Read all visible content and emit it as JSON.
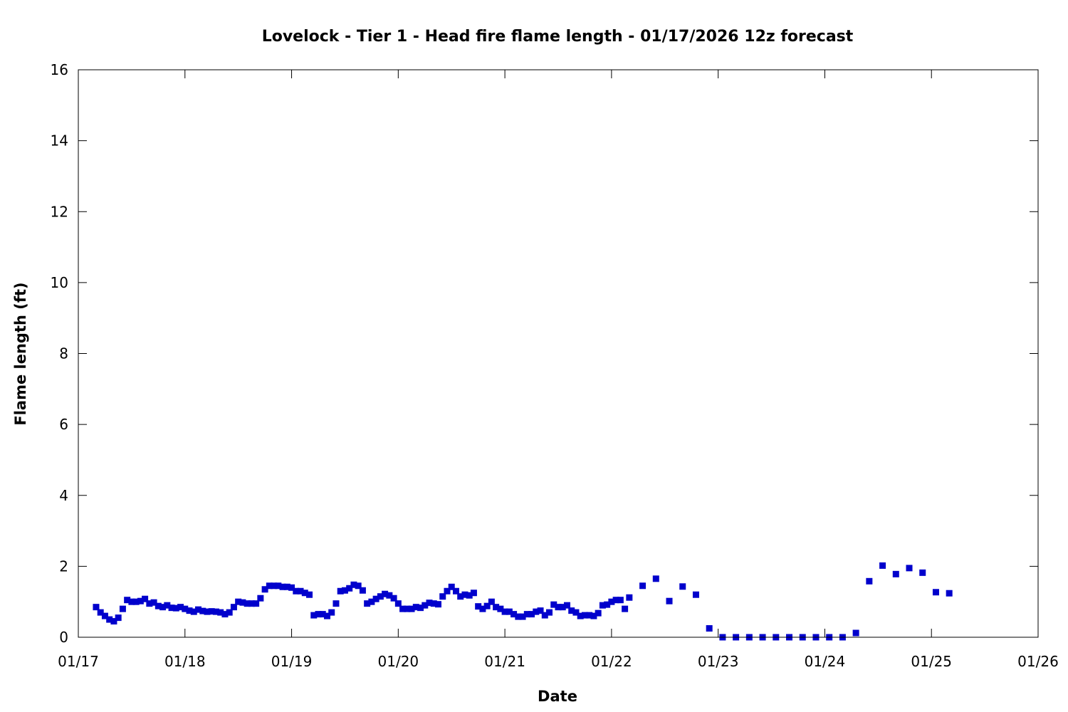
{
  "chart_data": {
    "type": "scatter",
    "title": "Lovelock - Tier 1 - Head fire flame length - 01/17/2026 12z forecast",
    "xlabel": "Date",
    "ylabel": "Flame length (ft)",
    "xlim": [
      "2026-01-17T00:00",
      "2026-01-26T00:00"
    ],
    "ylim": [
      0,
      16
    ],
    "x_tick_labels": [
      "01/17",
      "01/18",
      "01/19",
      "01/20",
      "01/21",
      "01/22",
      "01/23",
      "01/24",
      "01/25",
      "01/26"
    ],
    "y_tick_labels": [
      "0",
      "2",
      "4",
      "6",
      "8",
      "10",
      "12",
      "14",
      "16"
    ],
    "y_ticks": [
      0,
      2,
      4,
      6,
      8,
      10,
      12,
      14,
      16
    ],
    "grid": false,
    "marker_color": "#0000cc",
    "series": [
      {
        "x": [
          "2026-01-17T04:00",
          "2026-01-17T05:00",
          "2026-01-17T06:00",
          "2026-01-17T07:00",
          "2026-01-17T08:00",
          "2026-01-17T09:00",
          "2026-01-17T10:00",
          "2026-01-17T11:00",
          "2026-01-17T12:00",
          "2026-01-17T13:00",
          "2026-01-17T14:00",
          "2026-01-17T15:00",
          "2026-01-17T16:00",
          "2026-01-17T17:00",
          "2026-01-17T18:00",
          "2026-01-17T19:00",
          "2026-01-17T20:00",
          "2026-01-17T21:00",
          "2026-01-17T22:00",
          "2026-01-17T23:00",
          "2026-01-18T00:00",
          "2026-01-18T01:00",
          "2026-01-18T02:00",
          "2026-01-18T03:00",
          "2026-01-18T04:00",
          "2026-01-18T05:00",
          "2026-01-18T06:00",
          "2026-01-18T07:00",
          "2026-01-18T08:00",
          "2026-01-18T09:00",
          "2026-01-18T10:00",
          "2026-01-18T11:00",
          "2026-01-18T12:00",
          "2026-01-18T13:00",
          "2026-01-18T14:00",
          "2026-01-18T15:00",
          "2026-01-18T16:00",
          "2026-01-18T17:00",
          "2026-01-18T18:00",
          "2026-01-18T19:00",
          "2026-01-18T20:00",
          "2026-01-18T21:00",
          "2026-01-18T22:00",
          "2026-01-18T23:00",
          "2026-01-19T00:00",
          "2026-01-19T01:00",
          "2026-01-19T02:00",
          "2026-01-19T03:00",
          "2026-01-19T04:00",
          "2026-01-19T05:00",
          "2026-01-19T06:00",
          "2026-01-19T07:00",
          "2026-01-19T08:00",
          "2026-01-19T09:00",
          "2026-01-19T10:00",
          "2026-01-19T11:00",
          "2026-01-19T12:00",
          "2026-01-19T13:00",
          "2026-01-19T14:00",
          "2026-01-19T15:00",
          "2026-01-19T16:00",
          "2026-01-19T17:00",
          "2026-01-19T18:00",
          "2026-01-19T19:00",
          "2026-01-19T20:00",
          "2026-01-19T21:00",
          "2026-01-19T22:00",
          "2026-01-19T23:00",
          "2026-01-20T00:00",
          "2026-01-20T01:00",
          "2026-01-20T02:00",
          "2026-01-20T03:00",
          "2026-01-20T04:00",
          "2026-01-20T05:00",
          "2026-01-20T06:00",
          "2026-01-20T07:00",
          "2026-01-20T08:00",
          "2026-01-20T09:00",
          "2026-01-20T10:00",
          "2026-01-20T11:00",
          "2026-01-20T12:00",
          "2026-01-20T13:00",
          "2026-01-20T14:00",
          "2026-01-20T15:00",
          "2026-01-20T16:00",
          "2026-01-20T17:00",
          "2026-01-20T18:00",
          "2026-01-20T19:00",
          "2026-01-20T20:00",
          "2026-01-20T21:00",
          "2026-01-20T22:00",
          "2026-01-20T23:00",
          "2026-01-21T00:00",
          "2026-01-21T01:00",
          "2026-01-21T02:00",
          "2026-01-21T03:00",
          "2026-01-21T04:00",
          "2026-01-21T05:00",
          "2026-01-21T06:00",
          "2026-01-21T07:00",
          "2026-01-21T08:00",
          "2026-01-21T09:00",
          "2026-01-21T10:00",
          "2026-01-21T11:00",
          "2026-01-21T12:00",
          "2026-01-21T13:00",
          "2026-01-21T14:00",
          "2026-01-21T15:00",
          "2026-01-21T16:00",
          "2026-01-21T17:00",
          "2026-01-21T18:00",
          "2026-01-21T19:00",
          "2026-01-21T20:00",
          "2026-01-21T21:00",
          "2026-01-21T22:00",
          "2026-01-21T23:00",
          "2026-01-22T00:00",
          "2026-01-22T01:00",
          "2026-01-22T02:00",
          "2026-01-22T03:00",
          "2026-01-22T04:00",
          "2026-01-22T07:00",
          "2026-01-22T10:00",
          "2026-01-22T13:00",
          "2026-01-22T16:00",
          "2026-01-22T19:00",
          "2026-01-22T22:00",
          "2026-01-23T01:00",
          "2026-01-23T04:00",
          "2026-01-23T07:00",
          "2026-01-23T10:00",
          "2026-01-23T13:00",
          "2026-01-23T16:00",
          "2026-01-23T19:00",
          "2026-01-23T22:00",
          "2026-01-24T01:00",
          "2026-01-24T04:00",
          "2026-01-24T07:00",
          "2026-01-24T10:00",
          "2026-01-24T13:00",
          "2026-01-24T16:00",
          "2026-01-24T19:00",
          "2026-01-24T22:00",
          "2026-01-25T01:00",
          "2026-01-25T04:00"
        ],
        "y": [
          0.85,
          0.7,
          0.6,
          0.5,
          0.45,
          0.55,
          0.8,
          1.05,
          1.0,
          1.0,
          1.02,
          1.08,
          0.95,
          0.98,
          0.88,
          0.85,
          0.9,
          0.83,
          0.82,
          0.85,
          0.8,
          0.75,
          0.72,
          0.78,
          0.74,
          0.72,
          0.73,
          0.72,
          0.7,
          0.65,
          0.7,
          0.85,
          1.0,
          0.98,
          0.95,
          0.95,
          0.95,
          1.1,
          1.35,
          1.45,
          1.45,
          1.45,
          1.42,
          1.42,
          1.4,
          1.3,
          1.3,
          1.25,
          1.2,
          0.62,
          0.65,
          0.65,
          0.6,
          0.7,
          0.95,
          1.3,
          1.32,
          1.38,
          1.48,
          1.45,
          1.32,
          0.95,
          1.0,
          1.08,
          1.15,
          1.22,
          1.18,
          1.1,
          0.95,
          0.8,
          0.8,
          0.8,
          0.85,
          0.83,
          0.9,
          0.97,
          0.95,
          0.93,
          1.15,
          1.3,
          1.42,
          1.3,
          1.15,
          1.2,
          1.18,
          1.25,
          0.87,
          0.8,
          0.88,
          1.0,
          0.85,
          0.8,
          0.72,
          0.72,
          0.65,
          0.58,
          0.58,
          0.65,
          0.65,
          0.72,
          0.75,
          0.62,
          0.7,
          0.92,
          0.85,
          0.85,
          0.9,
          0.75,
          0.7,
          0.6,
          0.62,
          0.62,
          0.6,
          0.68,
          0.9,
          0.92,
          1.0,
          1.05,
          1.05,
          0.8,
          1.12,
          1.45,
          1.65,
          1.02,
          1.43,
          1.2,
          0.25,
          0.0,
          0.0,
          0.0,
          0.0,
          0.0,
          0.0,
          0.0,
          0.0,
          0.0,
          0.0,
          0.12,
          1.58,
          2.02,
          1.78,
          1.95,
          1.82,
          1.27,
          1.24
        ]
      }
    ]
  }
}
